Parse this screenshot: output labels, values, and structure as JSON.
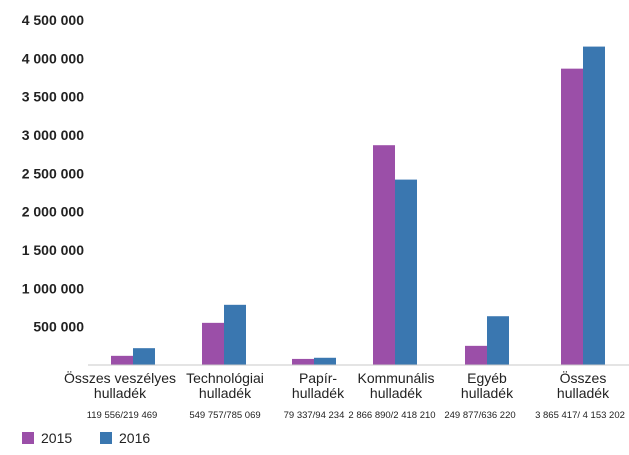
{
  "chart_data": {
    "type": "bar",
    "categories": [
      [
        "Összes veszélyes",
        "hulladék"
      ],
      [
        "Technológiai",
        "hulladék"
      ],
      [
        "Papír-",
        "hulladék"
      ],
      [
        "Kommunális",
        "hulladék"
      ],
      [
        "Egyéb",
        "hulladék"
      ],
      [
        "Összes",
        "hulladék"
      ]
    ],
    "value_labels": [
      "119 556/219 469",
      "549 757/785 069",
      "79 337/94 234",
      "2 866 890/2 418 210",
      "249 877/636 220",
      "3 865 417/ 4 153 202"
    ],
    "series": [
      {
        "name": "2015",
        "color": "#9b4fa8",
        "values": [
          119556,
          549757,
          79337,
          2866890,
          249877,
          3865417
        ]
      },
      {
        "name": "2016",
        "color": "#3a77b0",
        "values": [
          219469,
          785069,
          94234,
          2418210,
          636220,
          4153202
        ]
      }
    ],
    "ylim": [
      0,
      4500000
    ],
    "yticks": [
      {
        "value": 500000,
        "label": "500 000"
      },
      {
        "value": 1000000,
        "label": "1 000 000"
      },
      {
        "value": 1500000,
        "label": "1 500 000"
      },
      {
        "value": 2000000,
        "label": "2 000 000"
      },
      {
        "value": 2500000,
        "label": "2 500 000"
      },
      {
        "value": 3000000,
        "label": "3 000 000"
      },
      {
        "value": 3500000,
        "label": "3 500 000"
      },
      {
        "value": 4000000,
        "label": "4 000 000"
      },
      {
        "value": 4500000,
        "label": "4 500 000"
      }
    ],
    "grid": false,
    "legend": "bottom-left"
  }
}
